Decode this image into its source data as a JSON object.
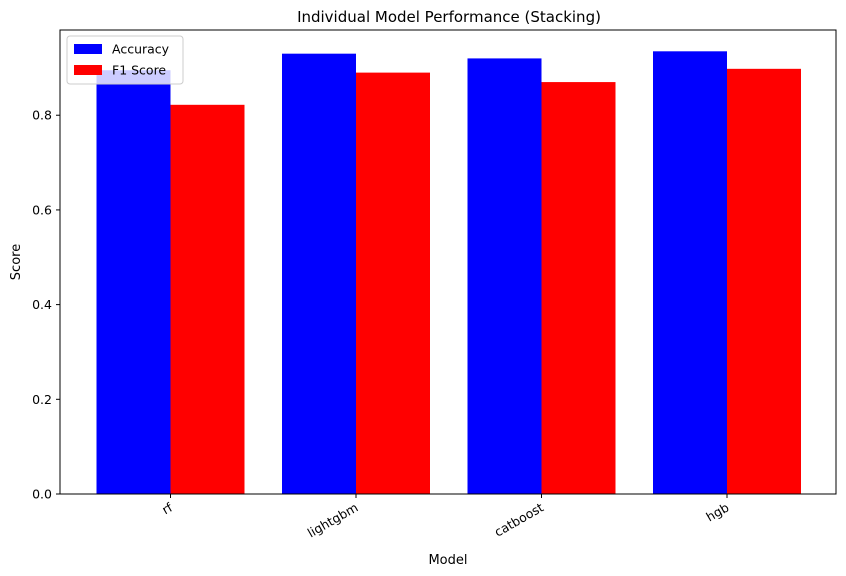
{
  "chart_data": {
    "type": "bar",
    "title": "Individual Model Performance (Stacking)",
    "xlabel": "Model",
    "ylabel": "Score",
    "categories": [
      "rf",
      "lightgbm",
      "catboost",
      "hgb"
    ],
    "series": [
      {
        "name": "Accuracy",
        "color": "#0000ff",
        "values": [
          0.895,
          0.93,
          0.92,
          0.935
        ]
      },
      {
        "name": "F1 Score",
        "color": "#ff0000",
        "values": [
          0.822,
          0.89,
          0.87,
          0.898
        ]
      }
    ],
    "ylim": [
      0,
      0.98
    ],
    "yticks": [
      "0.0",
      "0.2",
      "0.4",
      "0.6",
      "0.8"
    ],
    "ytick_values": [
      0.0,
      0.2,
      0.4,
      0.6,
      0.8
    ],
    "xtick_rotation": 30,
    "grid": false,
    "legend_position": "top-left"
  }
}
